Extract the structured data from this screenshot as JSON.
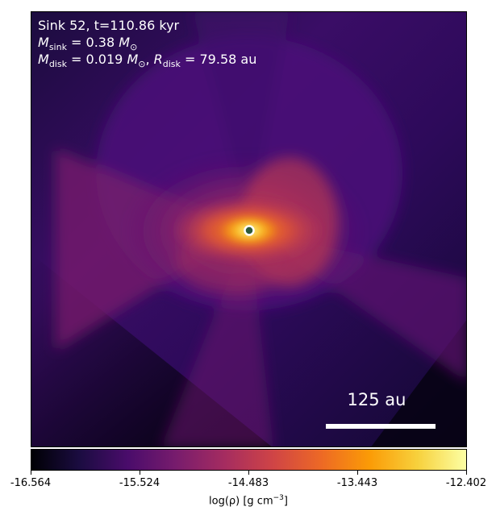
{
  "annotation": {
    "sink_line": "Sink 52, t=110.86 kyr",
    "mass_symbol": "M",
    "mass_sub": "sink",
    "mass_value": "= 0.38",
    "mass_unit": "M",
    "mass_unit_sub": "⊙",
    "disk_symbol": "M",
    "disk_sub": "disk",
    "disk_value": "= 0.019",
    "disk_unit": "M",
    "disk_unit_sub": "⊙",
    "radius_symbol": "R",
    "radius_sub": "disk",
    "radius_value": "= 79.58 au"
  },
  "scale_bar": {
    "label": "125 au"
  },
  "colorbar": {
    "colormap": "inferno",
    "ticks": [
      "-16.564",
      "-15.524",
      "-14.483",
      "-13.443",
      "-12.402"
    ],
    "label_main": "log(ρ) [g cm",
    "label_sup": "−3",
    "label_end": "]"
  },
  "sink_marker": {
    "fill": "#2e5a3a",
    "stroke": "#ffffff"
  }
}
